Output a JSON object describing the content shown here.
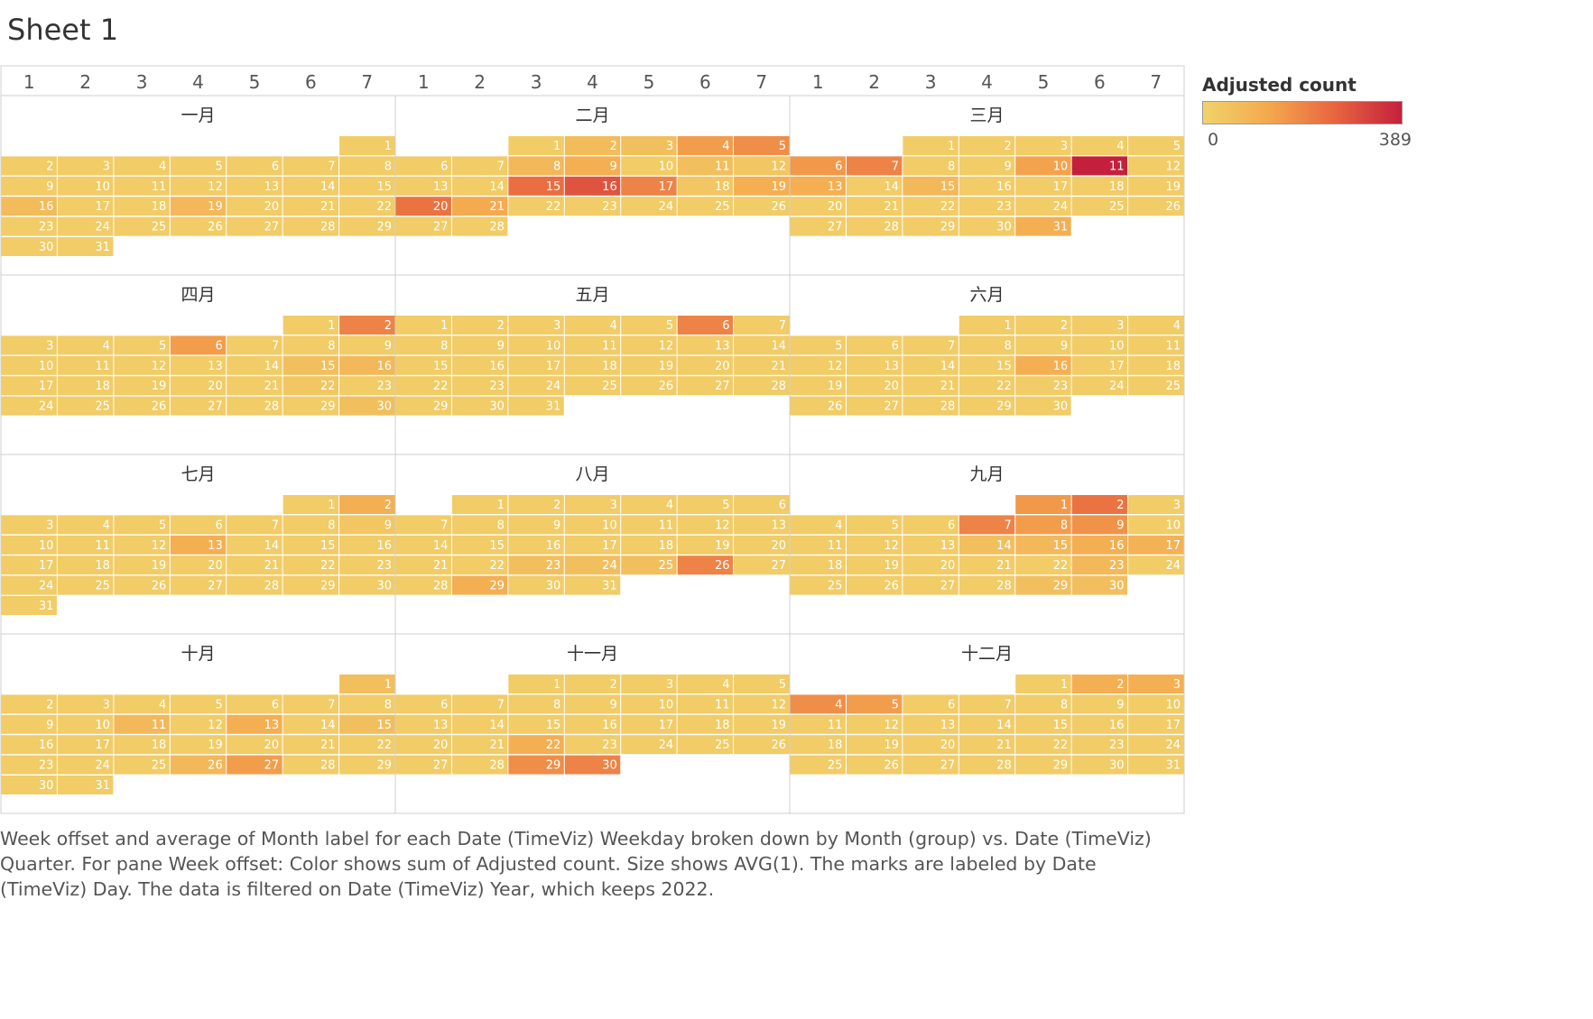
{
  "page": {
    "title": "Sheet 1"
  },
  "chart_data": {
    "type": "heatmap",
    "year": 2022,
    "color_measure": "Adjusted count",
    "color_range": [
      0,
      389
    ],
    "color_stops": [
      "#f1d36b",
      "#f4a84e",
      "#e8643f",
      "#c4203d"
    ],
    "weekday_labels": [
      "1",
      "2",
      "3",
      "4",
      "5",
      "6",
      "7"
    ],
    "months": [
      {
        "name": "一月",
        "start_weekday": 7,
        "days": 31,
        "hot": {
          "16": 70,
          "19": 80
        }
      },
      {
        "name": "二月",
        "start_weekday": 3,
        "days": 28,
        "hot": {
          "2": 70,
          "3": 60,
          "4": 150,
          "5": 180,
          "8": 80,
          "9": 110,
          "11": 60,
          "12": 40,
          "15": 240,
          "16": 290,
          "17": 200,
          "18": 40,
          "19": 110,
          "20": 230,
          "21": 120
        }
      },
      {
        "name": "三月",
        "start_weekday": 3,
        "days": 31,
        "hot": {
          "6": 160,
          "7": 200,
          "10": 140,
          "11": 389,
          "13": 110,
          "15": 80,
          "31": 110
        }
      },
      {
        "name": "四月",
        "start_weekday": 6,
        "days": 30,
        "hot": {
          "2": 200,
          "6": 150,
          "15": 60,
          "16": 80,
          "22": 40,
          "30": 60
        }
      },
      {
        "name": "五月",
        "start_weekday": 1,
        "days": 31,
        "hot": {
          "6": 200
        }
      },
      {
        "name": "六月",
        "start_weekday": 4,
        "days": 30,
        "hot": {
          "16": 110
        }
      },
      {
        "name": "七月",
        "start_weekday": 6,
        "days": 31,
        "hot": {
          "2": 110,
          "9": 40,
          "13": 110
        }
      },
      {
        "name": "八月",
        "start_weekday": 2,
        "days": 31,
        "hot": {
          "23": 60,
          "24": 60,
          "25": 60,
          "26": 200,
          "29": 110
        }
      },
      {
        "name": "九月",
        "start_weekday": 5,
        "days": 30,
        "hot": {
          "1": 160,
          "2": 230,
          "7": 200,
          "8": 150,
          "9": 170,
          "14": 60,
          "15": 80,
          "16": 110,
          "17": 100,
          "23": 80,
          "29": 60,
          "30": 60
        }
      },
      {
        "name": "十月",
        "start_weekday": 7,
        "days": 31,
        "hot": {
          "1": 60,
          "11": 80,
          "13": 110,
          "15": 60,
          "26": 80,
          "27": 150
        }
      },
      {
        "name": "十一月",
        "start_weekday": 3,
        "days": 30,
        "hot": {
          "22": 110,
          "29": 180,
          "30": 200
        }
      },
      {
        "name": "十二月",
        "start_weekday": 5,
        "days": 31,
        "hot": {
          "2": 110,
          "3": 110,
          "4": 180,
          "5": 150
        }
      }
    ]
  },
  "legend": {
    "title": "Adjusted count",
    "min_label": "0",
    "max_label": "389"
  },
  "caption": "Week offset and average of Month label for each Date (TimeViz) Weekday broken down by Month (group) vs. Date (TimeViz) Quarter.  For pane Week offset:  Color shows sum of Adjusted count.  Size shows AVG(1).  The marks are labeled by Date (TimeViz) Day. The data is filtered on Date (TimeViz) Year, which keeps 2022."
}
